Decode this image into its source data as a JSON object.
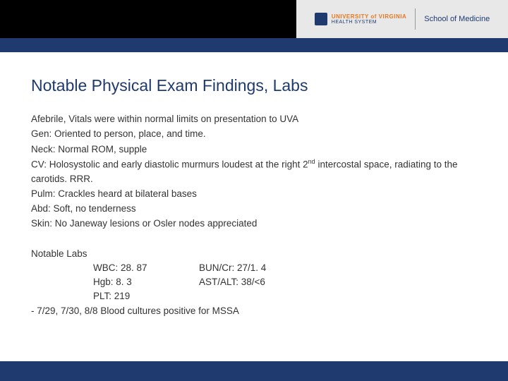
{
  "header": {
    "logo": {
      "university": "UNIVERSITY",
      "virginia": "of VIRGINIA",
      "health_system": "HEALTH SYSTEM",
      "school": "School of Medicine"
    }
  },
  "title": "Notable Physical Exam Findings, Labs",
  "findings": {
    "line1": "Afebrile, Vitals were within normal limits on presentation to UVA",
    "line2": "Gen: Oriented to person, place, and time.",
    "line3": "Neck: Normal ROM, supple",
    "line4a": "CV: Holosystolic and early diastolic murmurs loudest at the right 2",
    "line4sup": "nd",
    "line4b": " intercostal space, radiating to the carotids. RRR.",
    "line5": "Pulm: Crackles heard at bilateral bases",
    "line6": "Abd: Soft, no tenderness",
    "line7": "Skin: No Janeway lesions or Osler nodes appreciated"
  },
  "labs": {
    "heading": "Notable Labs",
    "rows": [
      {
        "c1": "WBC: 28. 87",
        "c2": "BUN/Cr: 27/1. 4"
      },
      {
        "c1": "Hgb: 8. 3",
        "c2": "AST/ALT: 38/<6"
      },
      {
        "c1": "PLT: 219",
        "c2": ""
      }
    ],
    "cultures": "- 7/29, 7/30, 8/8 Blood cultures positive for MSSA"
  },
  "colors": {
    "brand_blue": "#1e3a6e",
    "brand_orange": "#e87722",
    "text": "#333333",
    "header_gray": "#e8e8e8",
    "black": "#000000",
    "white": "#ffffff"
  }
}
